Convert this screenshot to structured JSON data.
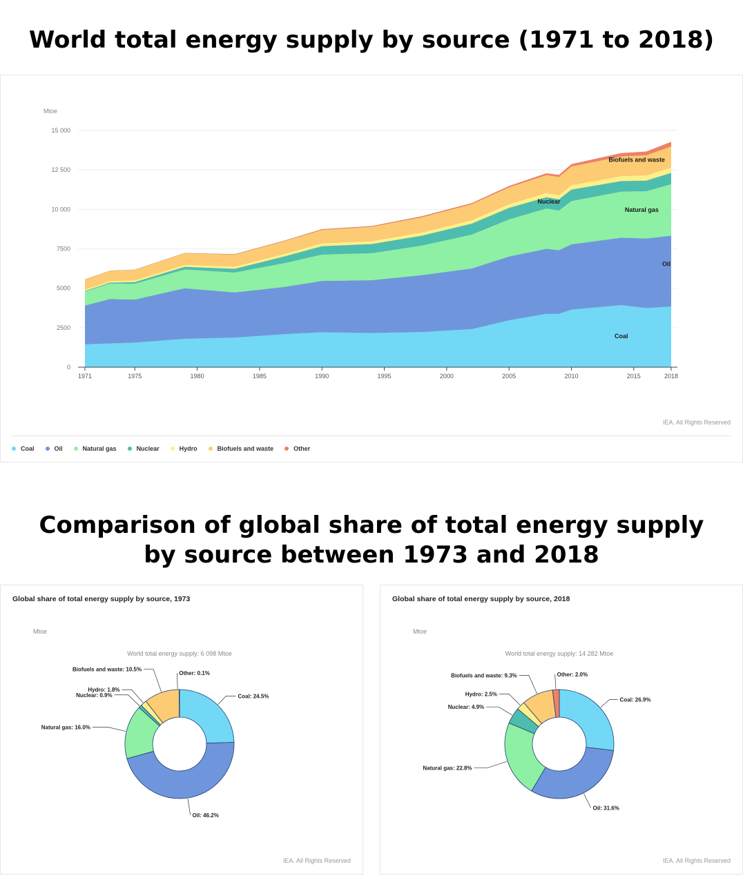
{
  "titles": {
    "main": "World total energy supply by source (1971 to 2018)",
    "comparison_line1": "Comparison of global share of total energy supply",
    "comparison_line2": "by source between 1973 and 2018"
  },
  "colors": {
    "Coal": "#72d8f6",
    "Oil": "#6f96dc",
    "Natural gas": "#8ef0a5",
    "Nuclear": "#4dbdb0",
    "Hydro": "#fdf08a",
    "Biofuels and waste": "#fccb73",
    "Other": "#f08066"
  },
  "chart_data": [
    {
      "type": "area",
      "stacked": true,
      "unit_label": "Mtoe",
      "rights": "IEA. All Rights Reserved",
      "ylim": [
        0,
        15000
      ],
      "yticks": [
        0,
        2500,
        5000,
        7500,
        10000,
        12500,
        15000
      ],
      "ytick_labels": [
        "0",
        "2500",
        "5000",
        "7500",
        "10 000",
        "12 500",
        "15 000"
      ],
      "xticks": [
        1971,
        1975,
        1980,
        1985,
        1990,
        1995,
        2000,
        2005,
        2010,
        2015,
        2018
      ],
      "x": [
        1971,
        1973,
        1975,
        1979,
        1983,
        1987,
        1990,
        1994,
        1998,
        2002,
        2005,
        2008,
        2009,
        2010,
        2014,
        2016,
        2018
      ],
      "series": [
        {
          "name": "Coal",
          "values": [
            1450,
            1510,
            1560,
            1800,
            1880,
            2100,
            2220,
            2170,
            2230,
            2420,
            2980,
            3390,
            3390,
            3650,
            3940,
            3750,
            3850
          ]
        },
        {
          "name": "Oil",
          "values": [
            2450,
            2800,
            2720,
            3200,
            2850,
            2980,
            3240,
            3340,
            3600,
            3830,
            4030,
            4110,
            4020,
            4130,
            4260,
            4400,
            4480
          ]
        },
        {
          "name": "Natural gas",
          "values": [
            900,
            990,
            1010,
            1200,
            1270,
            1520,
            1680,
            1720,
            1880,
            2150,
            2360,
            2560,
            2520,
            2750,
            2930,
            3000,
            3270
          ]
        },
        {
          "name": "Nuclear",
          "values": [
            30,
            55,
            100,
            160,
            230,
            420,
            525,
            570,
            620,
            690,
            720,
            710,
            700,
            720,
            660,
            670,
            710
          ]
        },
        {
          "name": "Hydro",
          "values": [
            100,
            110,
            120,
            140,
            150,
            170,
            185,
            200,
            215,
            225,
            250,
            275,
            280,
            290,
            330,
            340,
            360
          ]
        },
        {
          "name": "Biofuels and waste",
          "values": [
            620,
            640,
            660,
            720,
            760,
            800,
            850,
            900,
            960,
            1010,
            1060,
            1130,
            1150,
            1180,
            1240,
            1270,
            1320
          ]
        },
        {
          "name": "Other",
          "values": [
            10,
            10,
            10,
            15,
            20,
            30,
            40,
            45,
            55,
            65,
            80,
            110,
            120,
            140,
            200,
            230,
            290
          ]
        }
      ],
      "inline_labels": [
        "Biofuels and waste",
        "Nuclear",
        "Natural gas",
        "Oil",
        "Coal"
      ]
    },
    {
      "type": "pie",
      "donut": true,
      "title": "Global share of total energy supply by source, 1973",
      "unit_label": "Mtoe",
      "subtitle": "World total energy supply: 6 098 Mtoe",
      "rights": "IEA. All Rights Reserved",
      "slices": [
        {
          "name": "Coal",
          "value": 24.5,
          "label": "Coal: 24.5%"
        },
        {
          "name": "Oil",
          "value": 46.2,
          "label": "Oil: 46.2%"
        },
        {
          "name": "Natural gas",
          "value": 16.0,
          "label": "Natural gas: 16.0%"
        },
        {
          "name": "Nuclear",
          "value": 0.9,
          "label": "Nuclear: 0.9%"
        },
        {
          "name": "Hydro",
          "value": 1.8,
          "label": "Hydro: 1.8%"
        },
        {
          "name": "Biofuels and waste",
          "value": 10.5,
          "label": "Biofuels and waste: 10.5%"
        },
        {
          "name": "Other",
          "value": 0.1,
          "label": "Other: 0.1%"
        }
      ]
    },
    {
      "type": "pie",
      "donut": true,
      "title": "Global share of total energy supply by source, 2018",
      "unit_label": "Mtoe",
      "subtitle": "World total energy supply: 14 282 Mtoe",
      "rights": "IEA. All Rights Reserved",
      "slices": [
        {
          "name": "Coal",
          "value": 26.9,
          "label": "Coal: 26.9%"
        },
        {
          "name": "Oil",
          "value": 31.6,
          "label": "Oil: 31.6%"
        },
        {
          "name": "Natural gas",
          "value": 22.8,
          "label": "Natural gas: 22.8%"
        },
        {
          "name": "Nuclear",
          "value": 4.9,
          "label": "Nuclear: 4.9%"
        },
        {
          "name": "Hydro",
          "value": 2.5,
          "label": "Hydro: 2.5%"
        },
        {
          "name": "Biofuels and waste",
          "value": 9.3,
          "label": "Biofuels and waste: 9.3%"
        },
        {
          "name": "Other",
          "value": 2.0,
          "label": "Other: 2.0%"
        }
      ]
    }
  ],
  "legend": [
    "Coal",
    "Oil",
    "Natural gas",
    "Nuclear",
    "Hydro",
    "Biofuels and waste",
    "Other"
  ]
}
